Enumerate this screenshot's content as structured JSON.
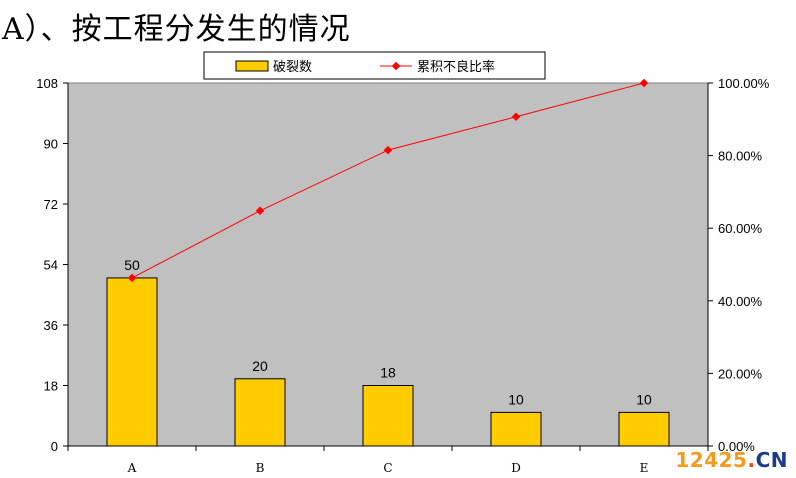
{
  "title": "A）、按工程分发生的情况",
  "watermark": {
    "number": "12425",
    "dot": ".",
    "tld": "CN"
  },
  "colors": {
    "plot_bg": "#c0c0c0",
    "bar": "#ffcc00",
    "line": "#ff0000"
  },
  "chart_data": {
    "type": "bar",
    "categories": [
      "A",
      "B",
      "C",
      "D",
      "E"
    ],
    "series": [
      {
        "name": "破裂数",
        "type": "bar",
        "axis": "left",
        "values": [
          50,
          20,
          18,
          10,
          10
        ]
      },
      {
        "name": "累积不良比率",
        "type": "line",
        "axis": "right",
        "values": [
          0.463,
          0.648,
          0.815,
          0.907,
          1.0
        ]
      }
    ],
    "data_labels": [
      "50",
      "20",
      "18",
      "10",
      "10"
    ],
    "y_left": {
      "min": 0,
      "max": 108,
      "ticks": [
        0,
        18,
        36,
        54,
        72,
        90,
        108
      ]
    },
    "y_right": {
      "min": 0,
      "max": 1,
      "ticks": [
        0,
        0.2,
        0.4,
        0.6,
        0.8,
        1.0
      ],
      "tick_labels": [
        "0.00%",
        "20.00%",
        "40.00%",
        "60.00%",
        "80.00%",
        "100.00%"
      ]
    },
    "legend": {
      "position": "top-center",
      "entries": [
        "破裂数",
        "累积不良比率"
      ]
    },
    "grid": false
  }
}
